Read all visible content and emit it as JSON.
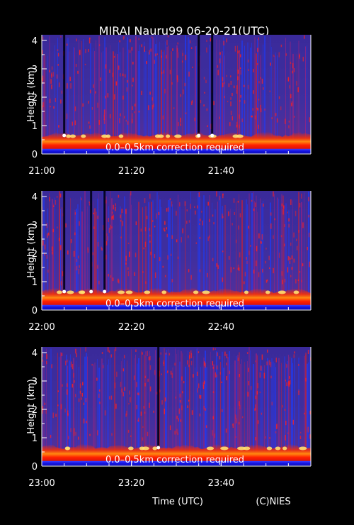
{
  "title": "MIRAI Nauru99 06-20-21(UTC)",
  "xlabel": "Time (UTC)",
  "credit": "(C)NIES",
  "chart_data": [
    {
      "type": "heatmap",
      "ylabel": "Height (km)",
      "annotation": "0.0–0.5km correction required",
      "x_ticks": [
        "21:00",
        "21:20",
        "21:40"
      ],
      "x_range": [
        "21:00",
        "22:00"
      ],
      "y_ticks": [
        "0",
        "1",
        "2",
        "3",
        "4"
      ],
      "ylim": [
        0,
        4.2
      ],
      "boundary_layer_top_km": 0.55,
      "dark_streak_times": [
        "21:05",
        "21:35",
        "21:38"
      ]
    },
    {
      "type": "heatmap",
      "ylabel": "Height (km)",
      "annotation": "0.0–0.5km correction required",
      "x_ticks": [
        "22:00",
        "22:20",
        "22:40"
      ],
      "x_range": [
        "22:00",
        "23:00"
      ],
      "y_ticks": [
        "0",
        "1",
        "2",
        "3",
        "4"
      ],
      "ylim": [
        0,
        4.2
      ],
      "boundary_layer_top_km": 0.55,
      "dark_streak_times": [
        "22:05",
        "22:11",
        "22:14"
      ]
    },
    {
      "type": "heatmap",
      "ylabel": "Height (km)",
      "annotation": "0.0–0.5km correction required",
      "x_ticks": [
        "23:00",
        "23:20",
        "23:40"
      ],
      "x_range": [
        "23:00",
        "24:00"
      ],
      "y_ticks": [
        "0",
        "1",
        "2",
        "3",
        "4"
      ],
      "ylim": [
        0,
        4.2
      ],
      "boundary_layer_top_km": 0.55,
      "dark_streak_times": [
        "23:26"
      ]
    }
  ]
}
